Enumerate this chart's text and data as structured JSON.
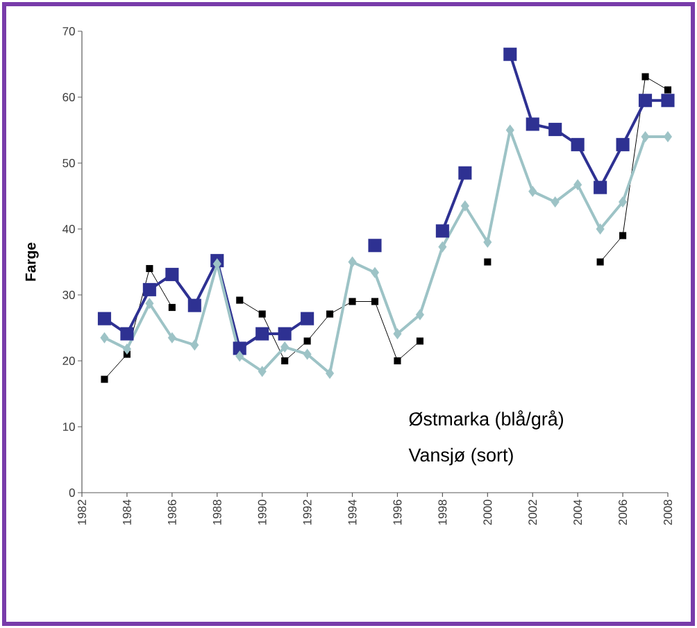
{
  "chart_data": {
    "type": "line",
    "ylabel": "Farge",
    "x": [
      1983,
      1984,
      1985,
      1986,
      1987,
      1988,
      1989,
      1990,
      1991,
      1992,
      1993,
      1994,
      1995,
      1996,
      1997,
      1998,
      1999,
      2000,
      2001,
      2002,
      2003,
      2004,
      2005,
      2006,
      2007,
      2008
    ],
    "series": [
      {
        "color": "#000000",
        "marker": "square",
        "values": [
          17.2,
          21.0,
          34.0,
          28.1,
          null,
          null,
          29.2,
          27.1,
          20.0,
          23.0,
          27.1,
          29.0,
          29.0,
          20.0,
          23.0,
          null,
          null,
          35.0,
          null,
          null,
          null,
          null,
          35.0,
          39.0,
          63.1,
          61.1
        ]
      },
      {
        "color": "#9dc3c6",
        "marker": "diamond",
        "values": [
          23.5,
          21.8,
          28.7,
          23.5,
          22.4,
          34.7,
          20.7,
          18.4,
          22.1,
          21.0,
          18.1,
          35.0,
          33.4,
          24.1,
          27.0,
          37.3,
          43.5,
          38.0,
          55.0,
          45.7,
          44.1,
          46.7,
          40.0,
          44.1,
          54.0,
          54.0
        ]
      },
      {
        "color": "#2e3192",
        "marker": "square",
        "values": [
          26.4,
          24.1,
          30.8,
          33.1,
          28.4,
          35.2,
          21.9,
          24.1,
          24.1,
          26.4,
          null,
          null,
          37.5,
          null,
          null,
          39.7,
          48.5,
          null,
          66.5,
          55.9,
          55.1,
          52.8,
          46.3,
          52.8,
          59.5,
          59.5
        ]
      }
    ],
    "xlim": [
      1982,
      2008
    ],
    "xticks": [
      1982,
      1984,
      1986,
      1988,
      1990,
      1992,
      1994,
      1996,
      1998,
      2000,
      2002,
      2004,
      2006,
      2008
    ],
    "ylim": [
      0,
      70
    ],
    "yticks": [
      0,
      10,
      20,
      30,
      40,
      50,
      60,
      70
    ],
    "grid": false,
    "annotations": [
      "Østmarka (blå/grå)",
      "Vansjø (sort)"
    ]
  }
}
